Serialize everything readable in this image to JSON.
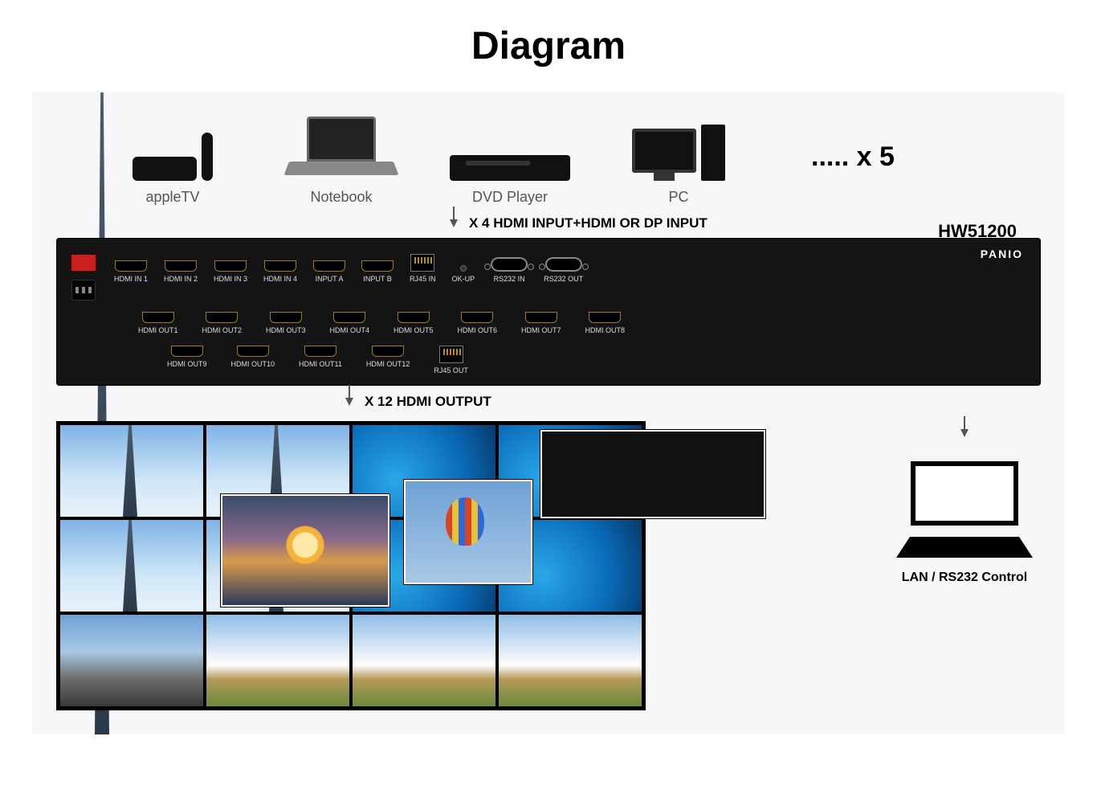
{
  "title": "Diagram",
  "sources": {
    "items": [
      {
        "label": "appleTV"
      },
      {
        "label": "Notebook"
      },
      {
        "label": "DVD Player"
      },
      {
        "label": "PC"
      }
    ],
    "multiplier": "..... x 5"
  },
  "input_arrow": {
    "label": "X 4 HDMI INPUT+HDMI OR DP INPUT"
  },
  "model": "HW51200",
  "panel": {
    "brand": "PANIO",
    "row1": [
      {
        "kind": "hdmi",
        "label": "HDMI IN 1"
      },
      {
        "kind": "hdmi",
        "label": "HDMI IN 2"
      },
      {
        "kind": "hdmi",
        "label": "HDMI IN 3"
      },
      {
        "kind": "hdmi",
        "label": "HDMI IN 4"
      },
      {
        "kind": "hdmi",
        "label": "INPUT A"
      },
      {
        "kind": "hdmi",
        "label": "INPUT B"
      },
      {
        "kind": "rj45",
        "label": "RJ45 IN"
      },
      {
        "kind": "okup",
        "label": "OK-UP"
      },
      {
        "kind": "serial",
        "label": "RS232 IN"
      },
      {
        "kind": "serial",
        "label": "RS232 OUT"
      }
    ],
    "row2": [
      {
        "kind": "hdmi",
        "label": "HDMI OUT1"
      },
      {
        "kind": "hdmi",
        "label": "HDMI OUT2"
      },
      {
        "kind": "hdmi",
        "label": "HDMI OUT3"
      },
      {
        "kind": "hdmi",
        "label": "HDMI OUT4"
      },
      {
        "kind": "hdmi",
        "label": "HDMI OUT5"
      },
      {
        "kind": "hdmi",
        "label": "HDMI OUT6"
      },
      {
        "kind": "hdmi",
        "label": "HDMI OUT7"
      },
      {
        "kind": "hdmi",
        "label": "HDMI OUT8"
      }
    ],
    "row3": [
      {
        "kind": "hdmi",
        "label": "HDMI OUT9"
      },
      {
        "kind": "hdmi",
        "label": "HDMI OUT10"
      },
      {
        "kind": "hdmi",
        "label": "HDMI OUT11"
      },
      {
        "kind": "hdmi",
        "label": "HDMI OUT12"
      },
      {
        "kind": "rj45",
        "label": "RJ45 OUT"
      }
    ]
  },
  "output_arrow": {
    "label": "X 12 HDMI OUTPUT"
  },
  "videowall": {
    "cols": 4,
    "rows": 3,
    "tiles": [
      "sky tower",
      "sky tower",
      "win",
      "win",
      "sky tower",
      "sky tower",
      "win",
      "win",
      "city",
      "mtn",
      "mtn",
      "mtn"
    ],
    "pips": [
      {
        "cls": "sunset sun"
      },
      {
        "cls": "balloon bal"
      },
      {
        "cls": "tv tvui"
      }
    ]
  },
  "control": {
    "label": "LAN / RS232 Control"
  },
  "colors": {
    "panel_bg": "#141414",
    "hdmi_border": "#a07a2a",
    "power_switch": "#cc1f1f",
    "canvas_bg": "#f7f7f9"
  }
}
